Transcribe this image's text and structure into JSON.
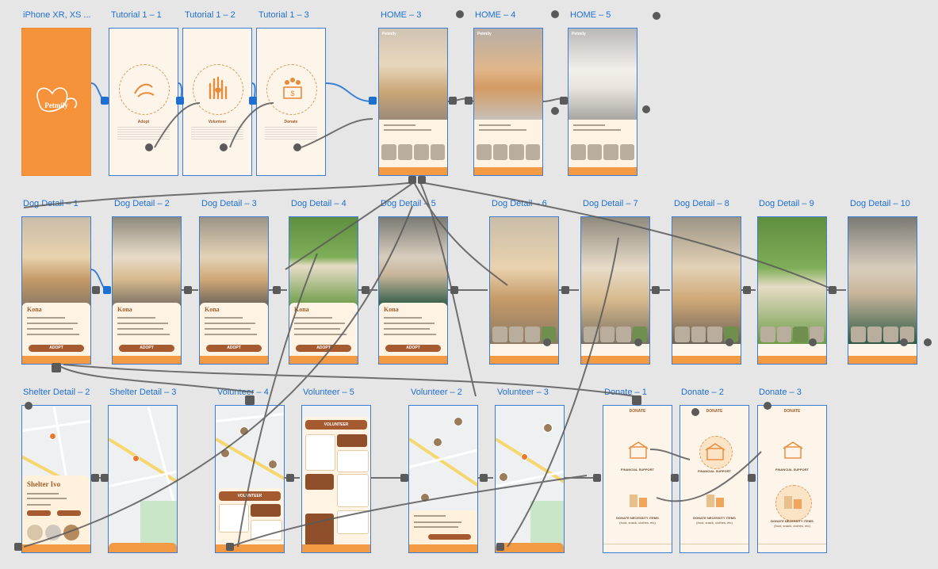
{
  "artboards": {
    "splash": "iPhone XR, XS ...",
    "tutorial1": "Tutorial 1 – 1",
    "tutorial2": "Tutorial 1 – 2",
    "tutorial3": "Tutorial 1 – 3",
    "home3": "HOME – 3",
    "home4": "HOME – 4",
    "home5": "HOME – 5",
    "dog1": "Dog Detail – 1",
    "dog2": "Dog Detail – 2",
    "dog3": "Dog Detail – 3",
    "dog4": "Dog Detail – 4",
    "dog5": "Dog Detail – 5",
    "dog6": "Dog Detail – 6",
    "dog7": "Dog Detail – 7",
    "dog8": "Dog Detail – 8",
    "dog9": "Dog Detail – 9",
    "dog10": "Dog Detail – 10",
    "shelter2": "Shelter Detail – 2",
    "shelter3": "Shelter Detail – 3",
    "vol4": "Volunteer – 4",
    "vol5": "Volunteer – 5",
    "vol2": "Volunteer – 2",
    "vol3": "Volunteer – 3",
    "donate1": "Donate – 1",
    "donate2": "Donate – 2",
    "donate3": "Donate – 3"
  },
  "screens": {
    "brand": "Petmily",
    "tutorial": {
      "adopt": "Adopt",
      "volunteer": "Volunteer",
      "donate": "Donate"
    },
    "dog_name": "Kona",
    "adopt_button": "ADOPT",
    "shelter_name": "Shelter Ivo",
    "volunteer_banner": "VOLUNTEER",
    "donate_title": "DONATE",
    "donate_financial": "FINANCIAL SUPPORT",
    "donate_goods": "DONATE NECESSITY ITEMS",
    "donate_goods_sub": "(food, snack, clothes, etc)"
  },
  "colors": {
    "canvas": "#e6e6e6",
    "artboard_label": "#1f6fd1",
    "brand_orange": "#f5923a",
    "accent_brown": "#a55a2f",
    "wire": "#555555"
  }
}
